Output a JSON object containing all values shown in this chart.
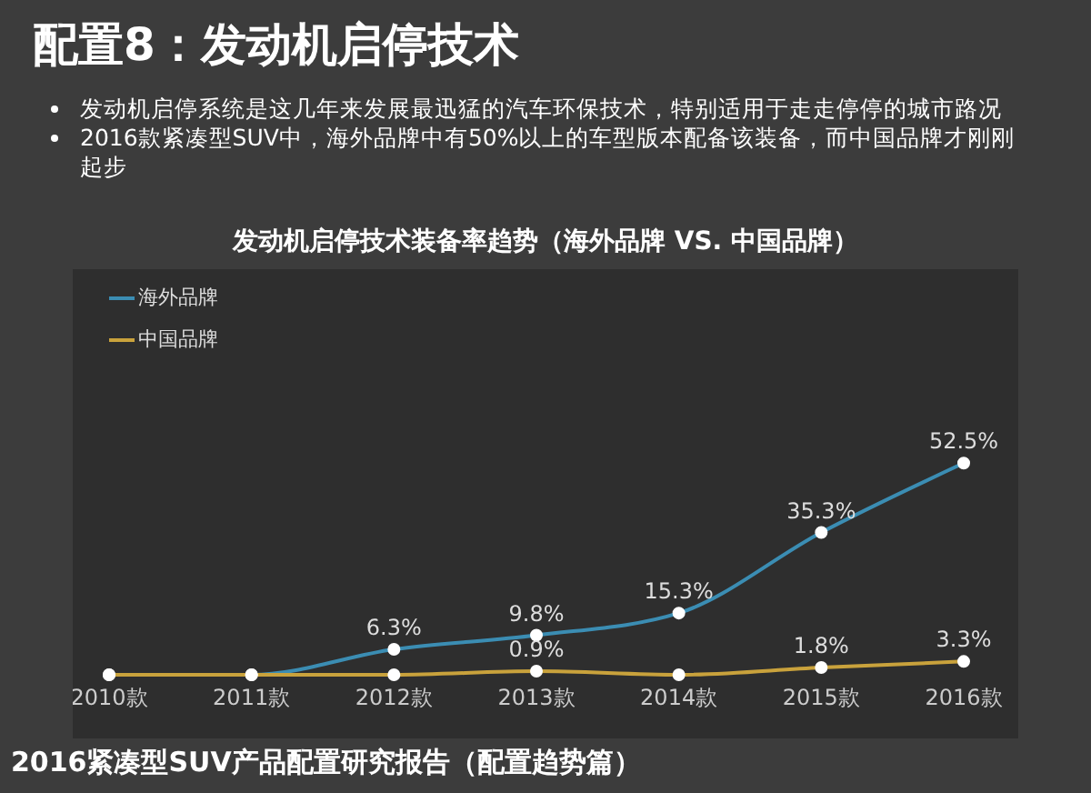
{
  "chart_data": {
    "type": "line",
    "title": "配置8：发动机启停技术",
    "subtitle": "发动机启停技术装备率趋势（海外品牌 VS. 中国品牌）",
    "annotations": [
      "发动机启停系统是这几年来发展最迅猛的汽车环保技术，特别适用于走走停停的城市路况",
      "2016款紧凑型SUV中，海外品牌中有50%以上的车型版本配备该装备，而中国品牌才刚刚起步",
      "2016紧凑型SUV产品配置研究报告（配置趋势篇）"
    ],
    "categories": [
      "2010款",
      "2011款",
      "2012款",
      "2013款",
      "2014款",
      "2015款",
      "2016款"
    ],
    "series": [
      {
        "name": "海外品牌",
        "color": "#3b8db3",
        "values": [
          0,
          0,
          6.3,
          9.8,
          15.3,
          35.3,
          52.5
        ],
        "value_labels": [
          null,
          null,
          "6.3%",
          "9.8%",
          "15.3%",
          "35.3%",
          "52.5%"
        ]
      },
      {
        "name": "中国品牌",
        "color": "#c9a23c",
        "values": [
          0,
          0,
          0,
          0.9,
          0,
          1.8,
          3.3
        ],
        "value_labels": [
          null,
          null,
          null,
          "0.9%",
          null,
          "1.8%",
          "3.3%"
        ]
      }
    ],
    "legend": "top left",
    "marker": "circle",
    "line_style": "solid"
  }
}
